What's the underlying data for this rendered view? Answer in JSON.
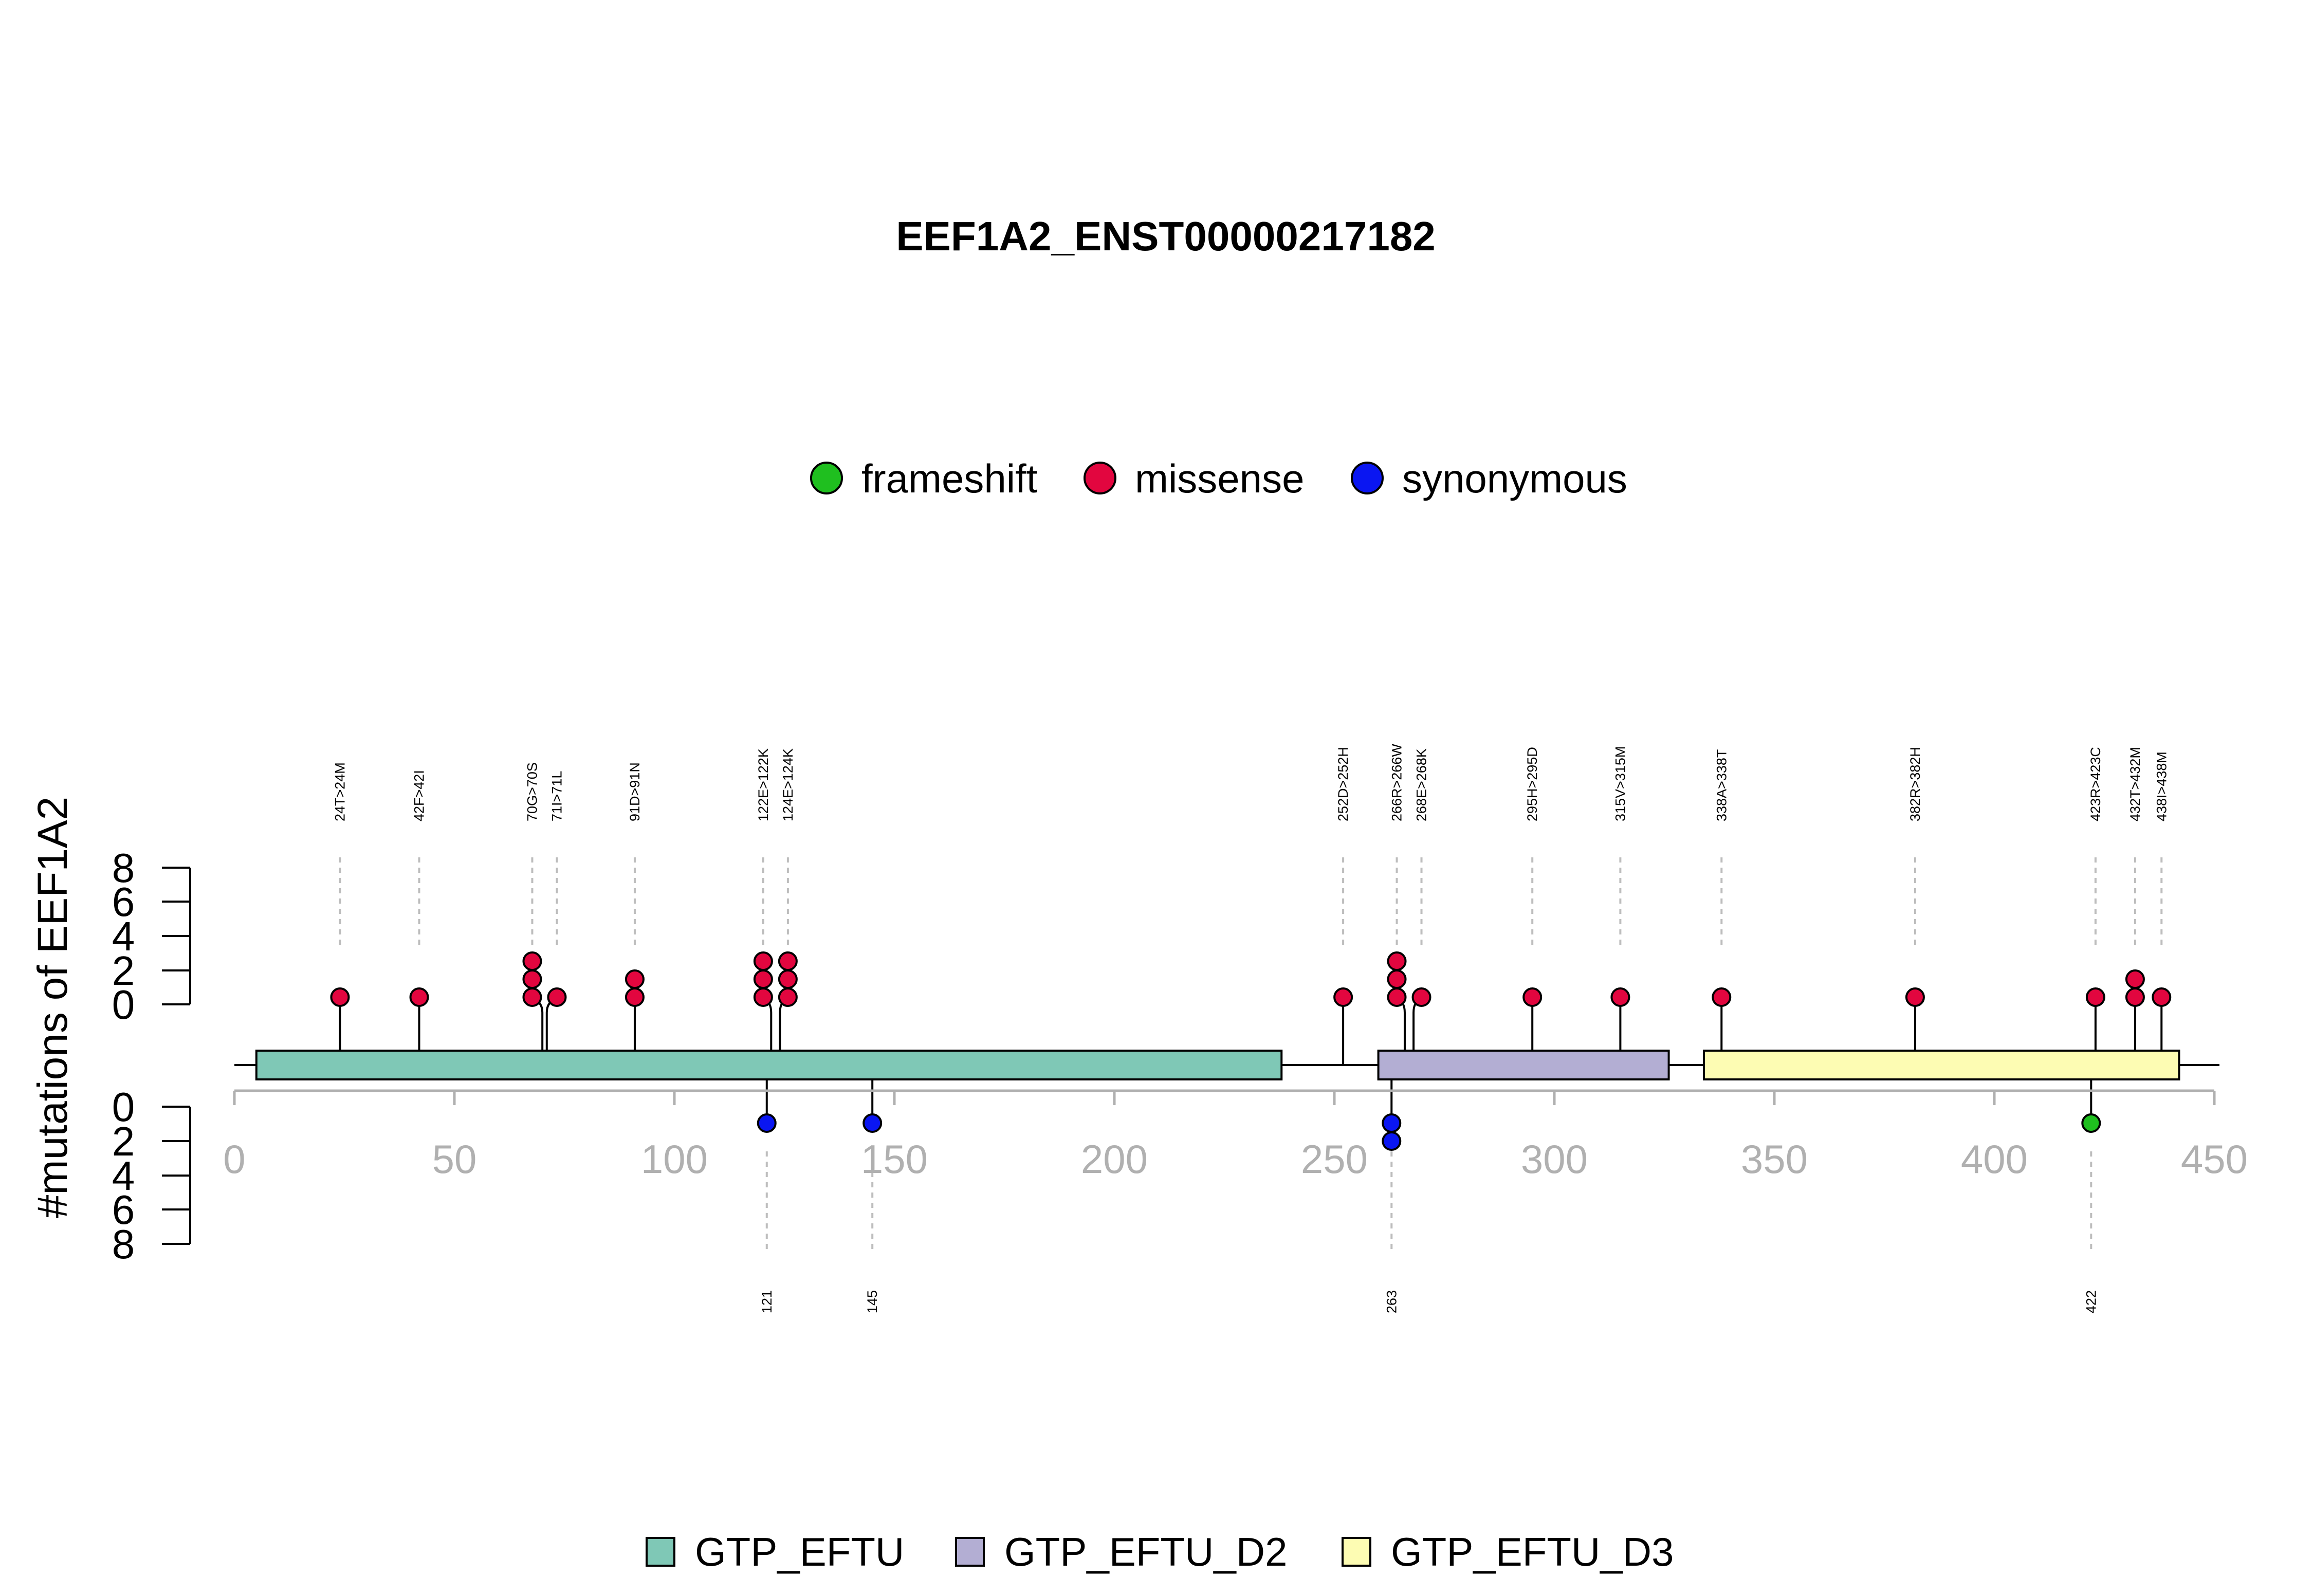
{
  "chart_data": {
    "type": "lollipop",
    "title": "EEF1A2_ENST00000217182",
    "ylabel": "#mutations of EEF1A2",
    "xlim": [
      0,
      450
    ],
    "x_ticks": [
      0,
      50,
      100,
      150,
      200,
      250,
      300,
      350,
      400,
      450
    ],
    "y_ticks_top": [
      "0",
      "2",
      "4",
      "6",
      "8"
    ],
    "y_ticks_bottom": [
      "0",
      "2",
      "4",
      "6",
      "8"
    ],
    "legend_mutation": [
      {
        "label": "frameshift",
        "color": "#1fbf1f"
      },
      {
        "label": "missense",
        "color": "#e2063f"
      },
      {
        "label": "synonymous",
        "color": "#0a16f2"
      }
    ],
    "legend_domain": [
      {
        "label": "GTP_EFTU",
        "color": "#7fc8b6"
      },
      {
        "label": "GTP_EFTU_D2",
        "color": "#b3aed3"
      },
      {
        "label": "GTP_EFTU_D3",
        "color": "#fdfcb3"
      }
    ],
    "domains": [
      {
        "name": "GTP_EFTU",
        "start": 5,
        "end": 238,
        "color": "#7fc8b6"
      },
      {
        "name": "GTP_EFTU_D2",
        "start": 260,
        "end": 326,
        "color": "#b3aed3"
      },
      {
        "name": "GTP_EFTU_D3",
        "start": 334,
        "end": 442,
        "color": "#fdfcb3"
      }
    ],
    "top_mutations": [
      {
        "pos": 24,
        "label": "24T>24M",
        "count": 1,
        "type": "missense"
      },
      {
        "pos": 42,
        "label": "42F>42I",
        "count": 1,
        "type": "missense"
      },
      {
        "pos": 70,
        "label": "70G>70S",
        "count": 3,
        "type": "missense"
      },
      {
        "pos": 71,
        "label": "71I>71L",
        "count": 1,
        "type": "missense"
      },
      {
        "pos": 91,
        "label": "91D>91N",
        "count": 2,
        "type": "missense"
      },
      {
        "pos": 122,
        "label": "122E>122K",
        "count": 3,
        "type": "missense"
      },
      {
        "pos": 124,
        "label": "124E>124K",
        "count": 3,
        "type": "missense"
      },
      {
        "pos": 252,
        "label": "252D>252H",
        "count": 1,
        "type": "missense"
      },
      {
        "pos": 266,
        "label": "266R>266W",
        "count": 3,
        "type": "missense"
      },
      {
        "pos": 268,
        "label": "268E>268K",
        "count": 1,
        "type": "missense"
      },
      {
        "pos": 295,
        "label": "295H>295D",
        "count": 1,
        "type": "missense"
      },
      {
        "pos": 315,
        "label": "315V>315M",
        "count": 1,
        "type": "missense"
      },
      {
        "pos": 338,
        "label": "338A>338T",
        "count": 1,
        "type": "missense"
      },
      {
        "pos": 382,
        "label": "382R>382H",
        "count": 1,
        "type": "missense"
      },
      {
        "pos": 423,
        "label": "423R>423C",
        "count": 1,
        "type": "missense"
      },
      {
        "pos": 432,
        "label": "432T>432M",
        "count": 2,
        "type": "missense"
      },
      {
        "pos": 438,
        "label": "438I>438M",
        "count": 1,
        "type": "missense"
      }
    ],
    "bottom_mutations": [
      {
        "pos": 121,
        "label": "121",
        "count": 1,
        "type": "synonymous"
      },
      {
        "pos": 145,
        "label": "145",
        "count": 1,
        "type": "synonymous"
      },
      {
        "pos": 263,
        "label": "263",
        "count": 2,
        "type": "synonymous"
      },
      {
        "pos": 422,
        "label": "422",
        "count": 1,
        "type": "frameshift"
      }
    ]
  }
}
